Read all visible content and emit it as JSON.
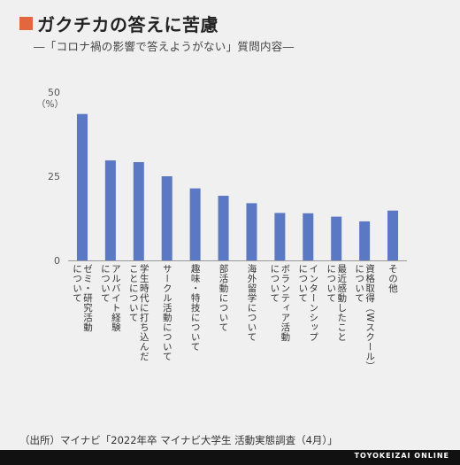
{
  "title": "ガクチカの答えに苦慮",
  "subtitle": "―「コロナ禍の影響で答えようがない」質問内容―",
  "source": "（出所）マイナビ「2022年卒 マイナビ大学生 活動実態調査（4月）」",
  "brand": "TOYOKEIZAI ONLINE",
  "colors": {
    "bar": "#5b78c4",
    "title_square": "#e2673f",
    "footer": "#111111"
  },
  "chart_data": {
    "type": "bar",
    "ylabel": "（%）",
    "ylim": [
      0,
      50
    ],
    "yticks": [
      {
        "value": 0,
        "label": "0"
      },
      {
        "value": 25,
        "label": "25"
      },
      {
        "value": 50,
        "label": "50"
      }
    ],
    "categories": [
      "ゼミ・研究活動\nについて",
      "アルバイト経験\nについて",
      "学生時代に打ち込んだ\nことについて",
      "サークル活動について",
      "趣味・特技について",
      "部活動について",
      "海外留学について",
      "ボランティア活動\nについて",
      "インターンシップ\nについて",
      "最近感動したこと\nについて",
      "資格取得（Wスクール）\nについて",
      "その他"
    ],
    "values": [
      43.5,
      29.7,
      29.2,
      25.0,
      21.4,
      19.2,
      17.0,
      14.1,
      14.0,
      13.0,
      11.6,
      14.8
    ]
  }
}
